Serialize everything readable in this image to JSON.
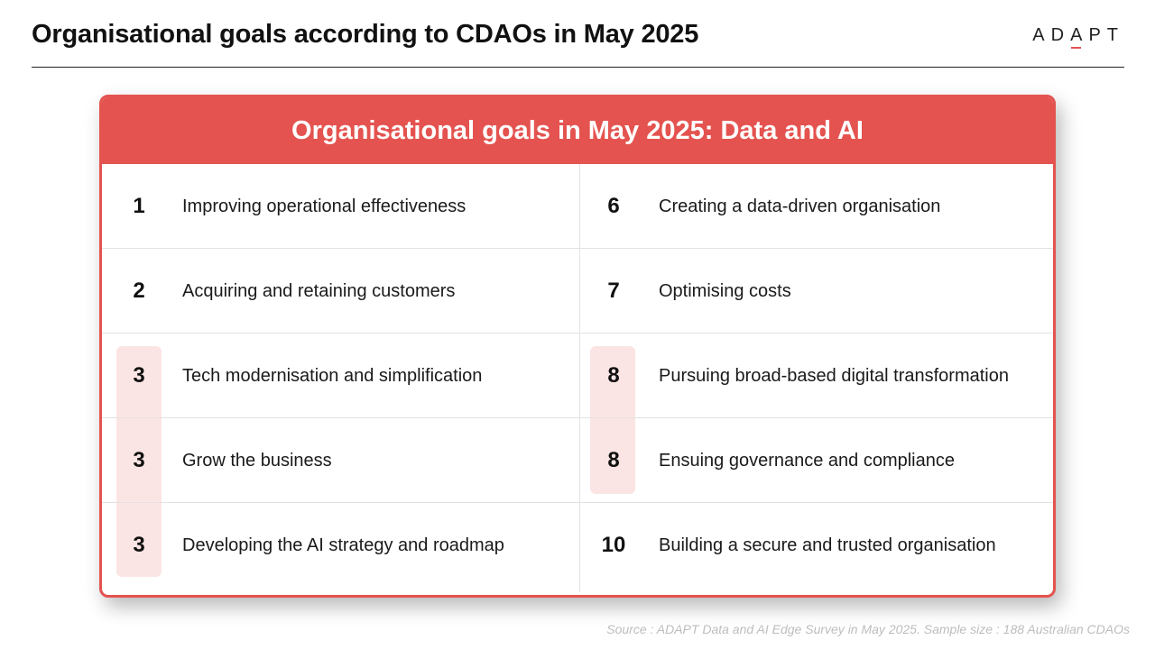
{
  "header": {
    "title": "Organisational goals according to CDAOs in May 2025",
    "logo_text_1": "AD",
    "logo_text_accent": "A",
    "logo_text_2": "PT",
    "accent_color": "#e4534f"
  },
  "card": {
    "title": "Organisational goals in May 2025: Data and AI",
    "rows": [
      {
        "left": {
          "rank": "1",
          "goal": "Improving operational effectiveness"
        },
        "right": {
          "rank": "6",
          "goal": "Creating a data-driven organisation"
        }
      },
      {
        "left": {
          "rank": "2",
          "goal": "Acquiring and retaining customers"
        },
        "right": {
          "rank": "7",
          "goal": "Optimising costs"
        }
      },
      {
        "left": {
          "rank": "3",
          "goal": "Tech modernisation and simplification"
        },
        "right": {
          "rank": "8",
          "goal": "Pursuing broad-based digital transformation"
        }
      },
      {
        "left": {
          "rank": "3",
          "goal": "Grow the business"
        },
        "right": {
          "rank": "8",
          "goal": "Ensuing governance and compliance"
        }
      },
      {
        "left": {
          "rank": "3",
          "goal": "Developing the AI strategy and roadmap"
        },
        "right": {
          "rank": "10",
          "goal": "Building a secure and trusted organisation"
        }
      }
    ]
  },
  "footer": {
    "source": "Source : ADAPT Data and AI Edge Survey in May 2025. Sample size : 188 Australian CDAOs"
  }
}
